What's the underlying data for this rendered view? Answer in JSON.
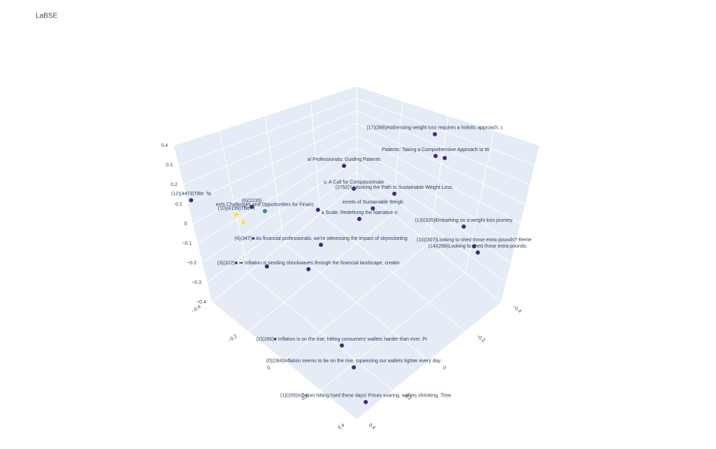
{
  "chart_data": {
    "type": "scatter3d",
    "title": "LaBSE",
    "x": [
      -0.01,
      0.072,
      0.077,
      -0.131,
      -0.036,
      0.056,
      0.059,
      0.03,
      0.317,
      0.388,
      0.382,
      0.008,
      -0.013,
      -0.079,
      0.189,
      0.256,
      0.383,
      -0.084,
      -0.235,
      -0.204,
      -0.286,
      -0.263,
      -0.39
    ],
    "y": [
      -0.361,
      -0.287,
      -0.327,
      -0.073,
      -0.023,
      -0.122,
      -0.018,
      0.017,
      -0.198,
      -0.185,
      -0.218,
      0.182,
      0.229,
      0.365,
      0.268,
      0.271,
      0.333,
      0.1,
      0.262,
      0.233,
      0.292,
      0.286,
      0.39
    ],
    "z": [
      0.3,
      0.25,
      0.22,
      0.2,
      0.15,
      0.12,
      0.1,
      0.05,
      0.05,
      0,
      -0.05,
      0,
      -0.1,
      -0.05,
      -0.3,
      -0.35,
      -0.38,
      0.08,
      0.1,
      0.08,
      0.05,
      0.02,
      0.12
    ],
    "text": [
      "(17)(388)Addressing weight loss requires a holistic approach, c",
      "Patients: Taking a Comprehensive Approach to W",
      null,
      "al Professionals: Guiding Patients",
      "s: A Call for Compassionate",
      "(2752)'Unlocking the Path to Sustainable Weight Loss.",
      "ecrets of Sustainable Weigh",
      "a Scale: Redefining the Narrative o",
      "(13)(325)Embarking on a weight loss journey",
      "(15)(307)Looking to shed those extra pounds? Reme",
      "(14)(268)Looking to shed those extra pounds:",
      "(4)(347)■ As financial professionals, we're witnessing the impact of skyrocketing",
      "(3)(322)■ ➡ Inflation is sending shockwaves through the financial landscape, creatin",
      null,
      "(2)(266)■ Inflation is on the rise, hitting consumers' wallets harder than ever. Pr",
      "(0)(284)Inflation seems to be on the rise, squeezing our wallets tighter every day.",
      "(1)(200)Inflation hitting hard these days! Prices soaring, wallets shrinking. Time",
      null,
      "(6)(2235)",
      "ents Challenges and Opportunities for Financ",
      "(10)(4199)Title: 'I",
      null,
      "(12)(4473)Title: 'Ia"
    ],
    "colors": [
      "#482878",
      "#482878",
      "#482878",
      "#482878",
      "#482878",
      "#482878",
      "#482878",
      "#482878",
      "#482878",
      "#482878",
      "#482878",
      "#482878",
      "#482878",
      "#30336b",
      "#482878",
      "#482878",
      "#482878",
      "#482878",
      "#482878",
      "#3e8b8b",
      "#fde725",
      "#fde725",
      "#482878"
    ],
    "xlim": [
      -0.4,
      0.4
    ],
    "ylim": [
      -0.4,
      0.4
    ],
    "zlim": [
      -0.4,
      0.4
    ],
    "xticks": [
      {
        "value": -0.4,
        "label": "−0.4"
      },
      {
        "value": -0.2,
        "label": "−0.2"
      },
      0,
      0.2,
      0.4
    ],
    "yticks": [
      {
        "value": -0.4,
        "label": "−0.4"
      },
      {
        "value": -0.2,
        "label": "−0.2"
      },
      0,
      0.2,
      0.4
    ],
    "zticks": [
      {
        "value": -0.4,
        "label": "−0.4"
      },
      {
        "value": -0.3,
        "label": "−0.3"
      },
      {
        "value": -0.2,
        "label": "−0.2"
      },
      {
        "value": -0.1,
        "label": "−0.1"
      },
      0,
      0.1,
      0.2,
      0.3,
      0.4
    ],
    "grid": true
  }
}
